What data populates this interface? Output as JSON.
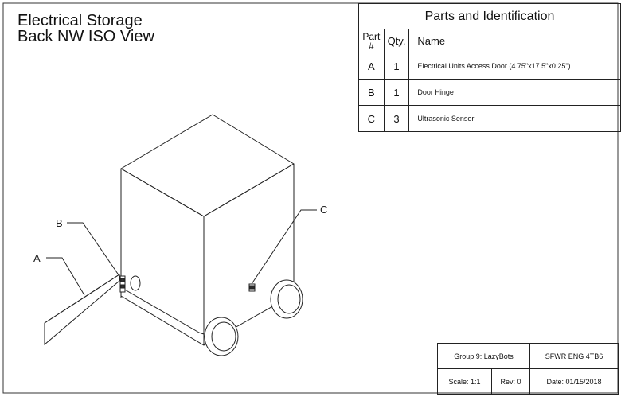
{
  "title": {
    "line1": "Electrical Storage",
    "line2": "Back NW ISO View"
  },
  "parts_table": {
    "caption": "Parts and Identification",
    "headers": {
      "part": "Part #",
      "qty": "Qty.",
      "name": "Name"
    },
    "rows": [
      {
        "part": "A",
        "qty": "1",
        "name": "Electrical Units Access Door (4.75\"x17.5\"x0.25\")"
      },
      {
        "part": "B",
        "qty": "1",
        "name": "Door Hinge"
      },
      {
        "part": "C",
        "qty": "3",
        "name": "Ultrasonic Sensor"
      }
    ]
  },
  "callouts": {
    "a": "A",
    "b": "B",
    "c": "C"
  },
  "info_block": {
    "group": "Group 9: LazyBots",
    "course": "SFWR ENG 4TB6",
    "scale": "Scale: 1:1",
    "rev": "Rev: 0",
    "date": "Date: 01/15/2018"
  }
}
